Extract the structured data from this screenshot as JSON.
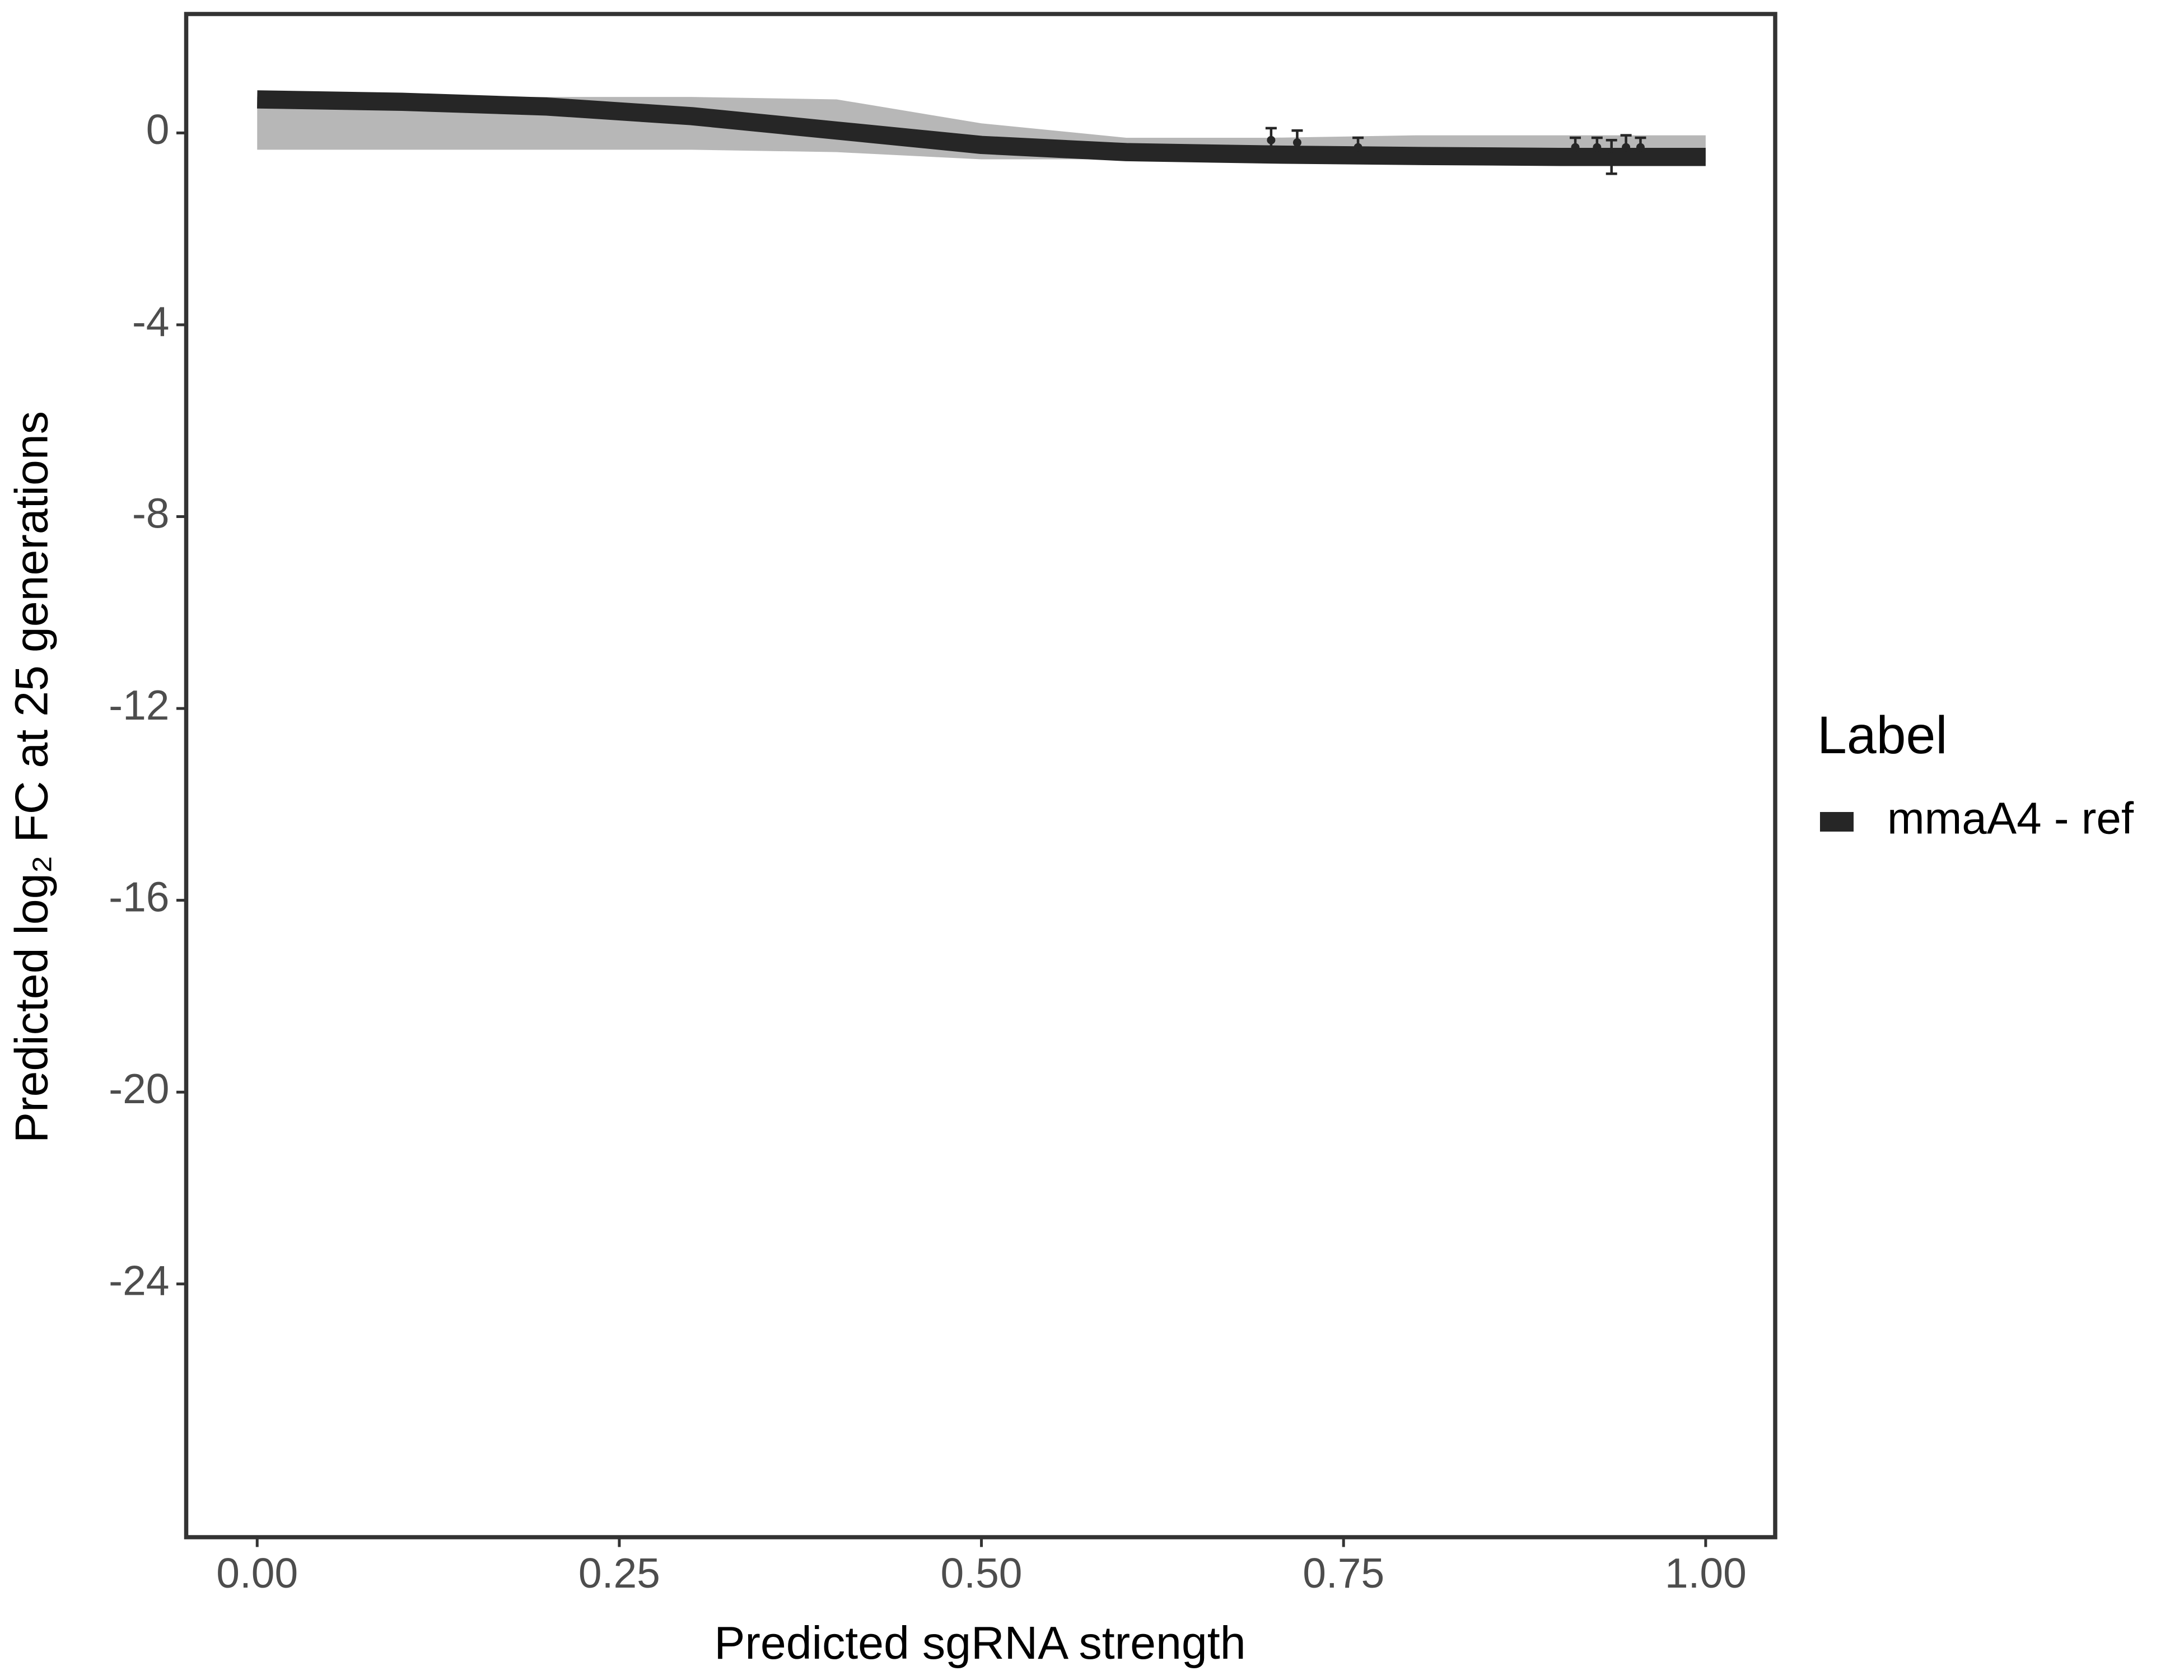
{
  "chart_data": {
    "type": "line",
    "xlabel": "Predicted sgRNA strength",
    "ylabel": "Predicted  log₂ FC at 25 generations",
    "legend_title": "Label",
    "x": [
      0,
      0.1,
      0.2,
      0.3,
      0.4,
      0.5,
      0.6,
      0.7,
      0.8,
      0.9,
      1.0
    ],
    "series": [
      {
        "name": "mmaA4 - ref",
        "color": "#262626",
        "values": [
          0.7,
          0.65,
          0.55,
          0.35,
          0.05,
          -0.25,
          -0.4,
          -0.45,
          -0.48,
          -0.5,
          -0.5
        ]
      }
    ],
    "band": {
      "color": "#aaaaaa",
      "upper": [
        0.75,
        0.75,
        0.75,
        0.75,
        0.7,
        0.2,
        -0.1,
        -0.1,
        -0.05,
        -0.05,
        -0.05
      ],
      "lower": [
        -0.35,
        -0.35,
        -0.35,
        -0.35,
        -0.4,
        -0.55,
        -0.55,
        -0.55,
        -0.6,
        -0.6,
        -0.6
      ]
    },
    "points": {
      "color": "#262626",
      "x": [
        0.7,
        0.718,
        0.76,
        0.91,
        0.925,
        0.935,
        0.945,
        0.955
      ],
      "values": [
        -0.15,
        -0.2,
        -0.3,
        -0.3,
        -0.3,
        -0.5,
        -0.3,
        -0.3
      ],
      "errors": [
        0.25,
        0.25,
        0.2,
        0.2,
        0.2,
        0.35,
        0.25,
        0.2
      ]
    },
    "xlim": [
      -0.049,
      1.048
    ],
    "ylim": [
      -29.28,
      2.48
    ],
    "xticks": [
      {
        "value": 0,
        "label": "0.00"
      },
      {
        "value": 0.25,
        "label": "0.25"
      },
      {
        "value": 0.5,
        "label": "0.50"
      },
      {
        "value": 0.75,
        "label": "0.75"
      },
      {
        "value": 1,
        "label": "1.00"
      }
    ],
    "yticks": [
      0,
      -4,
      -8,
      -12,
      -16,
      -20,
      -24
    ],
    "legend_position": "right"
  }
}
